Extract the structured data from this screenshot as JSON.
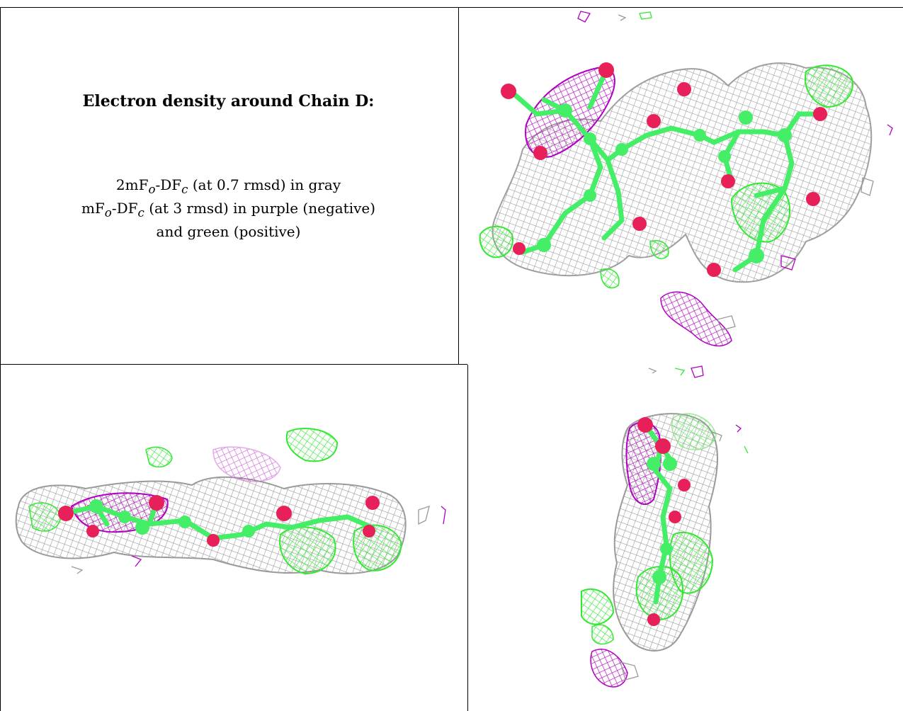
{
  "caption": {
    "title": "Electron density around Chain D:",
    "line1_pre": "2mF",
    "line1_sub1": "o",
    "line1_mid": "-DF",
    "line1_sub2": "c",
    "line1_post": " (at 0.7 rmsd) in gray",
    "line2_pre": "mF",
    "line2_sub1": "o",
    "line2_mid": "-DF",
    "line2_sub2": "c",
    "line2_post": " (at 3 rmsd) in purple (negative)",
    "line3": "and green (positive)"
  },
  "colors": {
    "gray_mesh": "#9a9a9a",
    "purple_mesh": "#b000c0",
    "green_mesh": "#33e833",
    "oxygen": "#e8205a",
    "carbon": "#44ee66"
  },
  "panels": [
    {
      "name": "view-top-right",
      "view": "front"
    },
    {
      "name": "view-bottom-left",
      "view": "side"
    },
    {
      "name": "view-bottom-right",
      "view": "end-on"
    }
  ]
}
